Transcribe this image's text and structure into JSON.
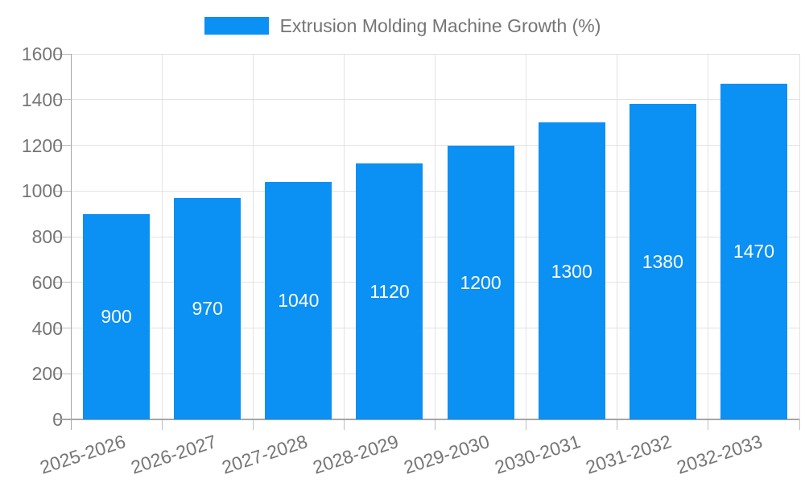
{
  "chart_data": {
    "type": "bar",
    "title": "",
    "legend": {
      "label": "Extrusion Molding Machine Growth (%)",
      "position": "top-center"
    },
    "categories": [
      "2025-2026",
      "2026-2027",
      "2027-2028",
      "2028-2029",
      "2029-2030",
      "2030-2031",
      "2031-2032",
      "2032-2033"
    ],
    "values": [
      900,
      970,
      1040,
      1120,
      1200,
      1300,
      1380,
      1470
    ],
    "value_labels": [
      "900",
      "970",
      "1040",
      "1120",
      "1200",
      "1300",
      "1380",
      "1470"
    ],
    "xlabel": "",
    "ylabel": "",
    "ylim": [
      0,
      1600
    ],
    "yticks": [
      0,
      200,
      400,
      600,
      800,
      1000,
      1200,
      1400,
      1600
    ],
    "grid": true,
    "legend_visible": true,
    "x_label_rotation_deg": -18,
    "colors": {
      "bar": "#0b90f3",
      "value_label": "#ffffff",
      "axis_text": "#757575",
      "grid_line": "#e3e3e3",
      "axis_line": "#a6a6a6",
      "tick_line": "#bdbdbd",
      "background": "#ffffff"
    }
  }
}
